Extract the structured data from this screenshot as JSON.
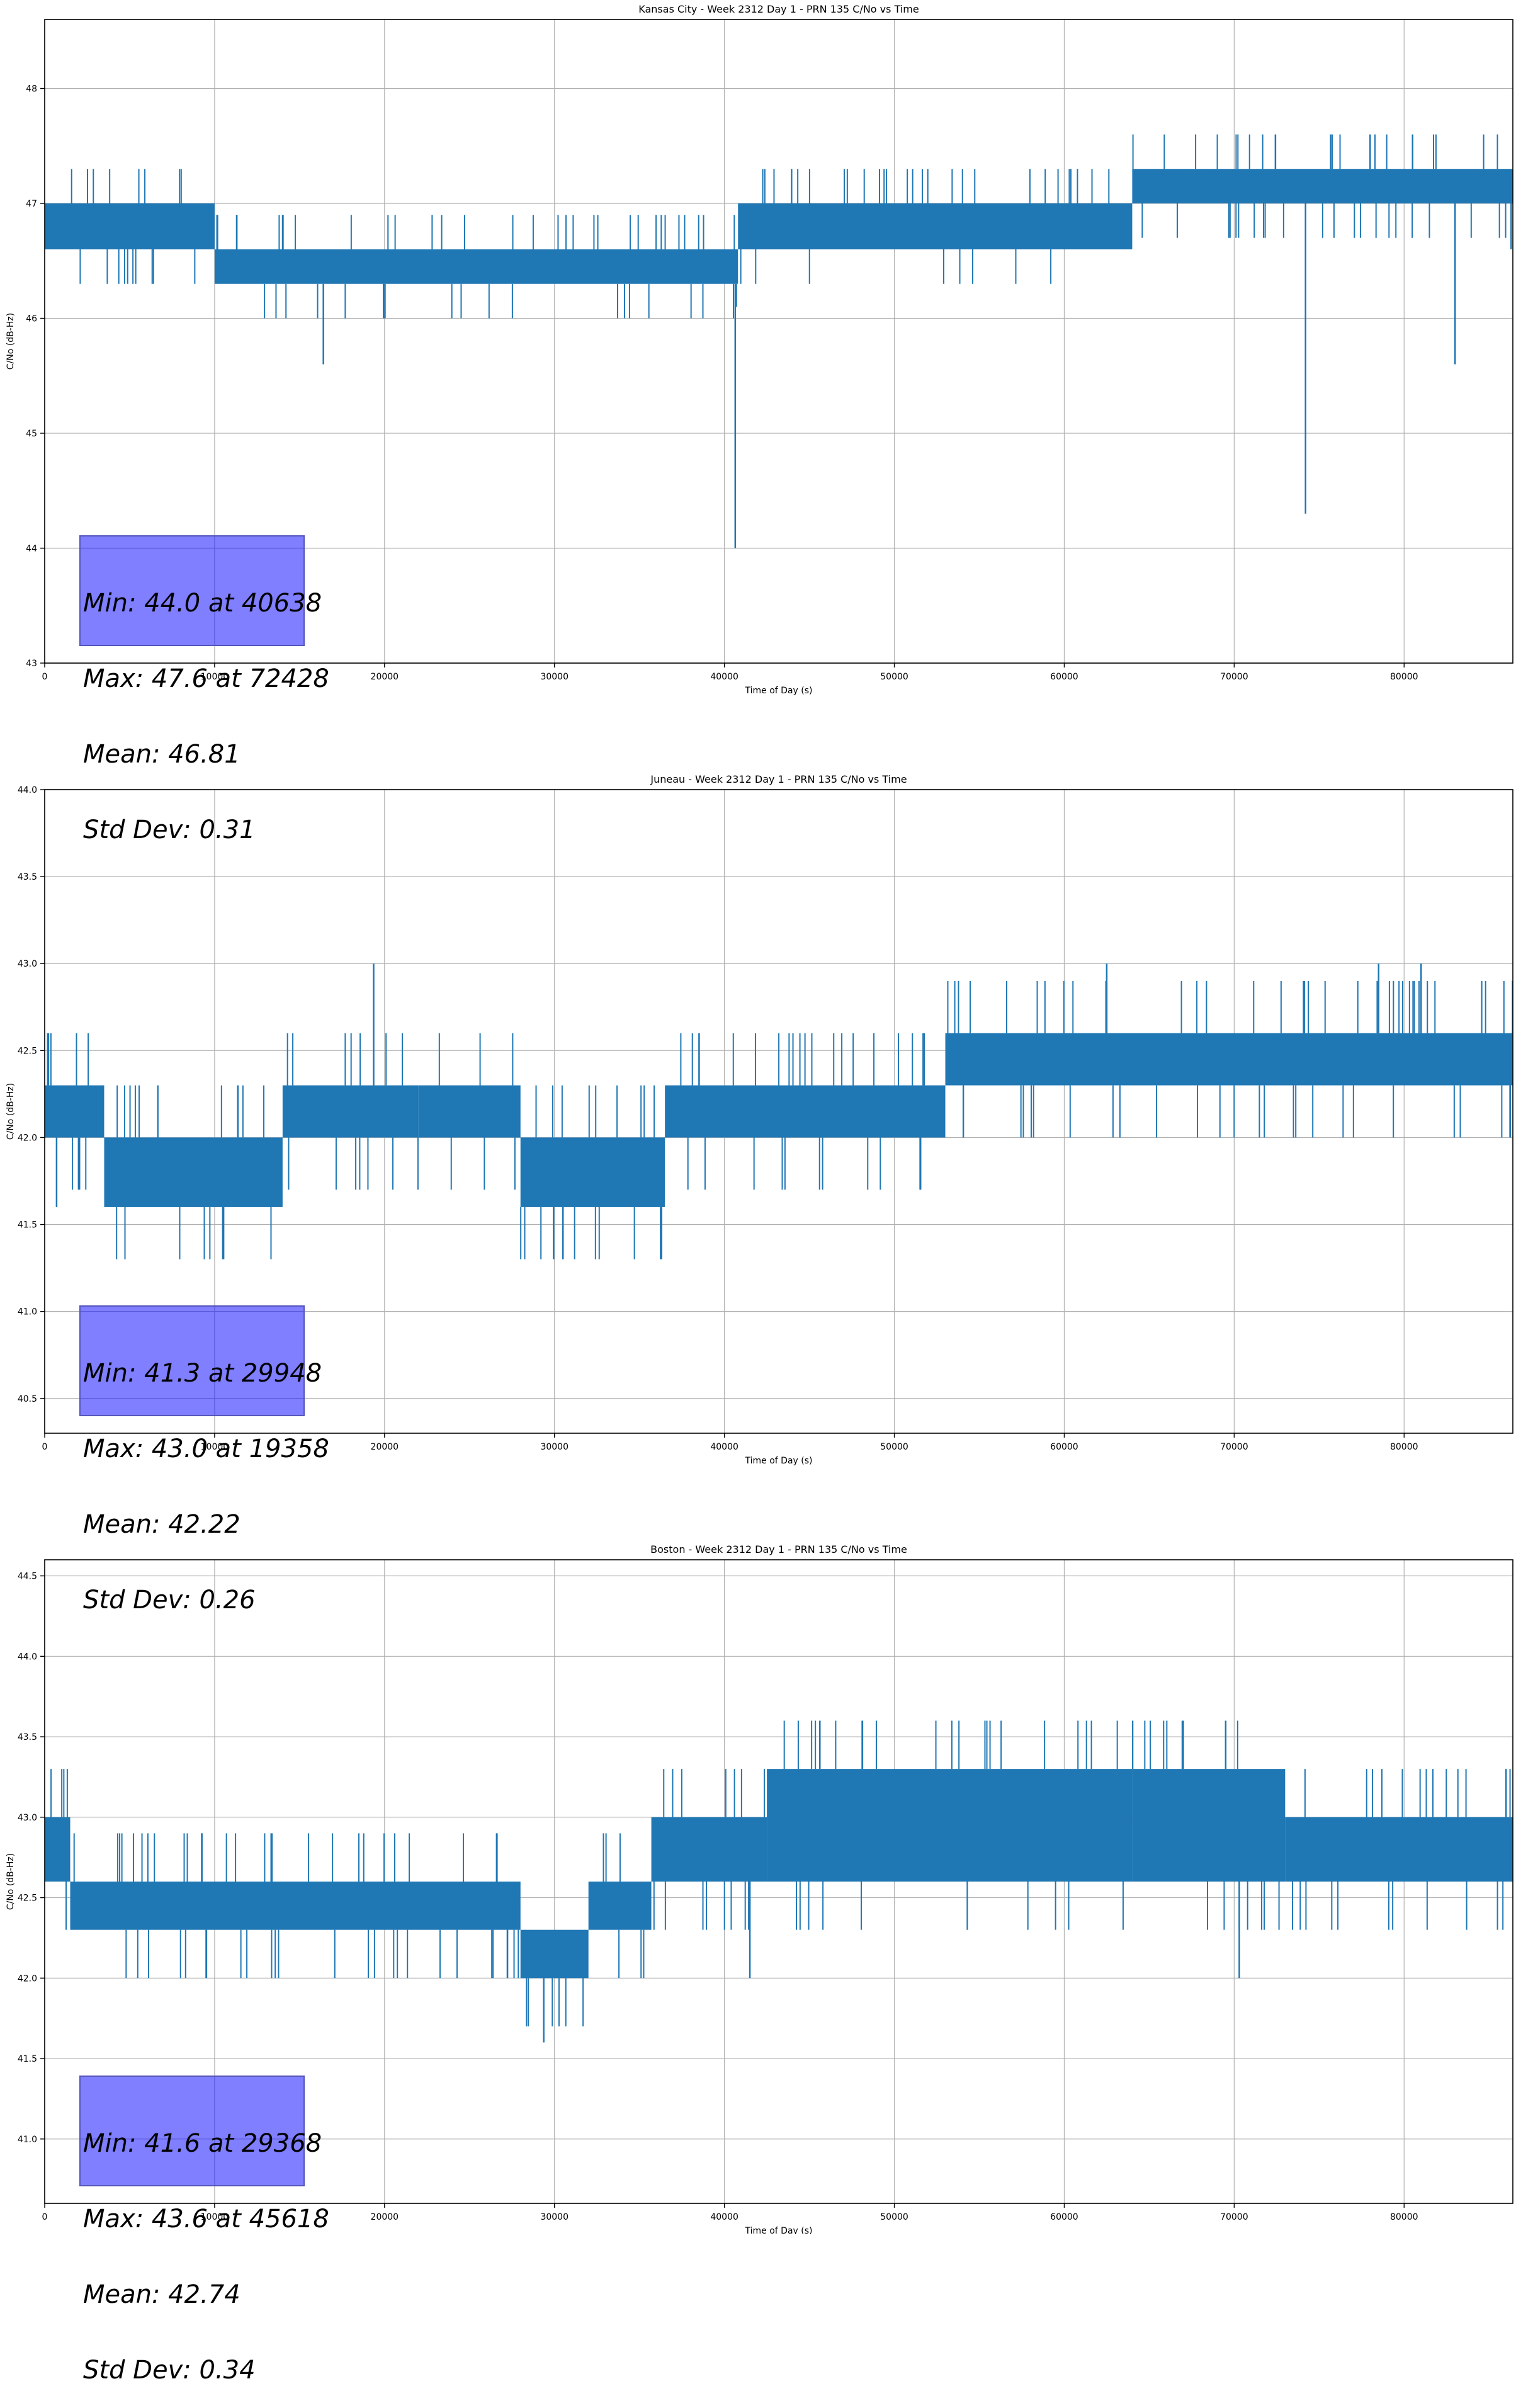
{
  "chart_data": [
    {
      "type": "line",
      "title": "Kansas City - Week 2312 Day 1 - PRN 135 C/No vs Time",
      "xlabel": "Time of Day (s)",
      "ylabel": "C/No (dB-Hz)",
      "xlim": [
        0,
        86400
      ],
      "ylim": [
        43.0,
        48.6
      ],
      "xticks": [
        0,
        10000,
        20000,
        30000,
        40000,
        50000,
        60000,
        70000,
        80000
      ],
      "yticks": [
        43,
        44,
        45,
        46,
        47,
        48
      ],
      "ytick_labels": [
        "43",
        "44",
        "45",
        "46",
        "47",
        "48"
      ],
      "grid": true,
      "series": [
        {
          "color": "#1f77b4",
          "bands": [
            {
              "x0": 0,
              "x1": 10000,
              "lo": 46.6,
              "hi": 47.0
            },
            {
              "x0": 10000,
              "x1": 40800,
              "lo": 46.3,
              "hi": 46.6
            },
            {
              "x0": 40800,
              "x1": 64000,
              "lo": 46.6,
              "hi": 47.0
            },
            {
              "x0": 64000,
              "x1": 86400,
              "lo": 47.0,
              "hi": 47.3
            }
          ],
          "spikes": [
            {
              "x": 16400,
              "y": 45.6
            },
            {
              "x": 40638,
              "y": 44.0
            },
            {
              "x": 40700,
              "y": 46.1
            },
            {
              "x": 74200,
              "y": 44.3
            },
            {
              "x": 83000,
              "y": 45.6
            },
            {
              "x": 72428,
              "y": 47.6
            },
            {
              "x": 78000,
              "y": 47.6
            },
            {
              "x": 80500,
              "y": 47.6
            },
            {
              "x": 86300,
              "y": 46.6
            }
          ]
        }
      ],
      "stats": [
        "Min: 44.0 at 40638",
        "Max: 47.6 at 72428",
        "Mean: 46.81",
        "Std Dev: 0.31"
      ]
    },
    {
      "type": "line",
      "title": "Juneau - Week 2312 Day 1 - PRN 135 C/No vs Time",
      "xlabel": "Time of Day (s)",
      "ylabel": "C/No (dB-Hz)",
      "xlim": [
        0,
        86400
      ],
      "ylim": [
        40.3,
        44.0
      ],
      "xticks": [
        0,
        10000,
        20000,
        30000,
        40000,
        50000,
        60000,
        70000,
        80000
      ],
      "yticks": [
        40.5,
        41.0,
        41.5,
        42.0,
        42.5,
        43.0,
        43.5,
        44.0
      ],
      "ytick_labels": [
        "40.5",
        "41.0",
        "41.5",
        "42.0",
        "42.5",
        "43.0",
        "43.5",
        "44.0"
      ],
      "grid": true,
      "series": [
        {
          "color": "#1f77b4",
          "bands": [
            {
              "x0": 0,
              "x1": 3500,
              "lo": 42.0,
              "hi": 42.3
            },
            {
              "x0": 3500,
              "x1": 14000,
              "lo": 41.6,
              "hi": 42.0
            },
            {
              "x0": 14000,
              "x1": 22000,
              "lo": 42.0,
              "hi": 42.3
            },
            {
              "x0": 22000,
              "x1": 28000,
              "lo": 42.0,
              "hi": 42.3
            },
            {
              "x0": 28000,
              "x1": 36500,
              "lo": 41.6,
              "hi": 42.0
            },
            {
              "x0": 36500,
              "x1": 53000,
              "lo": 42.0,
              "hi": 42.3
            },
            {
              "x0": 53000,
              "x1": 86400,
              "lo": 42.3,
              "hi": 42.6
            }
          ],
          "spikes": [
            {
              "x": 19358,
              "y": 43.0
            },
            {
              "x": 29948,
              "y": 41.3
            },
            {
              "x": 30500,
              "y": 41.3
            },
            {
              "x": 36300,
              "y": 41.3
            },
            {
              "x": 62500,
              "y": 43.0
            },
            {
              "x": 78500,
              "y": 43.0
            },
            {
              "x": 81000,
              "y": 43.0
            },
            {
              "x": 700,
              "y": 41.6
            }
          ]
        }
      ],
      "stats": [
        "Min: 41.3 at 29948",
        "Max: 43.0 at 19358",
        "Mean: 42.22",
        "Std Dev: 0.26"
      ]
    },
    {
      "type": "line",
      "title": "Boston - Week 2312 Day 1 - PRN 135 C/No vs Time",
      "xlabel": "Time of Day (s)",
      "ylabel": "C/No (dB-Hz)",
      "xlim": [
        0,
        86400
      ],
      "ylim": [
        40.6,
        44.6
      ],
      "xticks": [
        0,
        10000,
        20000,
        30000,
        40000,
        50000,
        60000,
        70000,
        80000
      ],
      "yticks": [
        41.0,
        41.5,
        42.0,
        42.5,
        43.0,
        43.5,
        44.0,
        44.5
      ],
      "ytick_labels": [
        "41.0",
        "41.5",
        "42.0",
        "42.5",
        "43.0",
        "43.5",
        "44.0",
        "44.5"
      ],
      "grid": true,
      "series": [
        {
          "color": "#1f77b4",
          "bands": [
            {
              "x0": 0,
              "x1": 1500,
              "lo": 42.6,
              "hi": 43.0
            },
            {
              "x0": 1500,
              "x1": 28000,
              "lo": 42.3,
              "hi": 42.6
            },
            {
              "x0": 28000,
              "x1": 32000,
              "lo": 42.0,
              "hi": 42.3
            },
            {
              "x0": 32000,
              "x1": 35700,
              "lo": 42.3,
              "hi": 42.6
            },
            {
              "x0": 35700,
              "x1": 42500,
              "lo": 42.6,
              "hi": 43.0
            },
            {
              "x0": 42500,
              "x1": 64000,
              "lo": 42.6,
              "hi": 43.3
            },
            {
              "x0": 64000,
              "x1": 73000,
              "lo": 42.6,
              "hi": 43.3
            },
            {
              "x0": 73000,
              "x1": 86400,
              "lo": 42.6,
              "hi": 43.0
            }
          ],
          "spikes": [
            {
              "x": 29368,
              "y": 41.6
            },
            {
              "x": 45618,
              "y": 43.6
            },
            {
              "x": 41500,
              "y": 42.0
            },
            {
              "x": 70300,
              "y": 42.0
            },
            {
              "x": 67000,
              "y": 43.6
            },
            {
              "x": 69500,
              "y": 43.6
            },
            {
              "x": 86000,
              "y": 43.3
            }
          ]
        }
      ],
      "stats": [
        "Min: 41.6 at 29368",
        "Max: 43.6 at 45618",
        "Mean: 42.74",
        "Std Dev: 0.34"
      ]
    }
  ]
}
